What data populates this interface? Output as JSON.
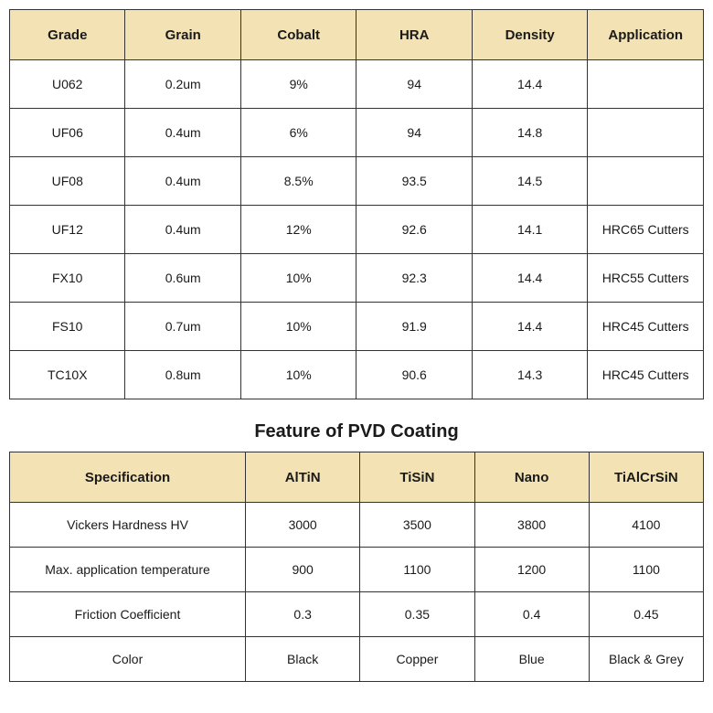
{
  "table1": {
    "columns": [
      "Grade",
      "Grain",
      "Cobalt",
      "HRA",
      "Density",
      "Application"
    ],
    "rows": [
      [
        "U062",
        "0.2um",
        "9%",
        "94",
        "14.4",
        ""
      ],
      [
        "UF06",
        "0.4um",
        "6%",
        "94",
        "14.8",
        ""
      ],
      [
        "UF08",
        "0.4um",
        "8.5%",
        "93.5",
        "14.5",
        ""
      ],
      [
        "UF12",
        "0.4um",
        "12%",
        "92.6",
        "14.1",
        "HRC65 Cutters"
      ],
      [
        "FX10",
        "0.6um",
        "10%",
        "92.3",
        "14.4",
        "HRC55 Cutters"
      ],
      [
        "FS10",
        "0.7um",
        "10%",
        "91.9",
        "14.4",
        "HRC45 Cutters"
      ],
      [
        "TC10X",
        "0.8um",
        "10%",
        "90.6",
        "14.3",
        "HRC45 Cutters"
      ]
    ],
    "header_bg": "#f3e2b3",
    "border_color": "#333333",
    "header_fontsize": 15,
    "cell_fontsize": 14
  },
  "section_title": "Feature of PVD Coating",
  "table2": {
    "columns": [
      "Specification",
      "AlTiN",
      "TiSiN",
      "Nano",
      "TiAlCrSiN"
    ],
    "rows": [
      [
        "Vickers Hardness HV",
        "3000",
        "3500",
        "3800",
        "4100"
      ],
      [
        "Max. application temperature",
        "900",
        "1100",
        "1200",
        "1100"
      ],
      [
        "Friction Coefficient",
        "0.3",
        "0.35",
        "0.4",
        "0.45"
      ],
      [
        "Color",
        "Black",
        "Copper",
        "Blue",
        "Black & Grey"
      ]
    ],
    "header_bg": "#f3e2b3",
    "border_color": "#333333",
    "header_fontsize": 15,
    "cell_fontsize": 14
  }
}
